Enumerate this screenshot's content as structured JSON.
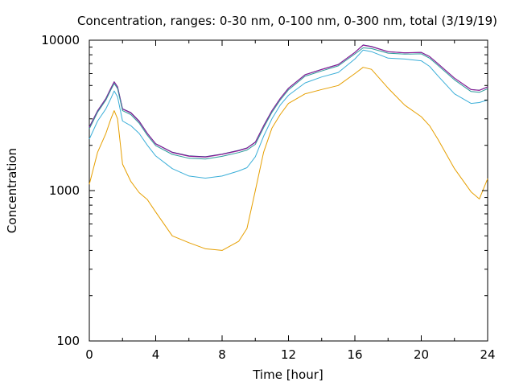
{
  "chart_data": {
    "type": "line",
    "title": "Concentration, ranges: 0-30 nm, 0-100 nm, 0-300 nm, total (3/19/19)",
    "xlabel": "Time [hour]",
    "ylabel": "Concentration",
    "xlim": [
      0,
      24
    ],
    "ylim": [
      100,
      10000
    ],
    "yscale": "log",
    "grid": false,
    "xticks": [
      0,
      4,
      8,
      12,
      16,
      20,
      24
    ],
    "yticks": [
      100,
      1000,
      10000
    ],
    "x": [
      0,
      0.5,
      1,
      1.3,
      1.5,
      1.7,
      2,
      2.5,
      3,
      3.5,
      4,
      5,
      6,
      7,
      8,
      9,
      9.5,
      10,
      10.5,
      11,
      11.5,
      12,
      13,
      14,
      15,
      16,
      16.5,
      17,
      18,
      19,
      20,
      20.5,
      21,
      22,
      23,
      23.5,
      24
    ],
    "series": [
      {
        "color": "#1a2a7a",
        "values": [
          2650,
          3400,
          4100,
          4800,
          5300,
          4900,
          3500,
          3300,
          2900,
          2400,
          2050,
          1800,
          1700,
          1680,
          1750,
          1850,
          1920,
          2100,
          2700,
          3400,
          4100,
          4800,
          5900,
          6400,
          6900,
          8300,
          9300,
          9100,
          8400,
          8250,
          8300,
          7800,
          7000,
          5600,
          4700,
          4650,
          4900
        ]
      },
      {
        "color": "#9a1a9a",
        "values": [
          2630,
          3380,
          4080,
          4780,
          5270,
          4880,
          3480,
          3280,
          2880,
          2390,
          2040,
          1790,
          1690,
          1670,
          1740,
          1840,
          1910,
          2090,
          2690,
          3390,
          4090,
          4780,
          5880,
          6380,
          6880,
          8280,
          9250,
          9050,
          8380,
          8230,
          8280,
          7780,
          6980,
          5590,
          4690,
          4640,
          4880
        ]
      },
      {
        "color": "#2a9a9a",
        "values": [
          2570,
          3320,
          4000,
          4680,
          5150,
          4770,
          3400,
          3200,
          2810,
          2330,
          1990,
          1740,
          1640,
          1620,
          1690,
          1790,
          1860,
          2030,
          2620,
          3310,
          4000,
          4680,
          5760,
          6250,
          6750,
          8100,
          8900,
          8800,
          8200,
          8080,
          8120,
          7600,
          6820,
          5450,
          4560,
          4500,
          4760
        ]
      },
      {
        "color": "#3aaed8",
        "values": [
          2200,
          2900,
          3500,
          4100,
          4600,
          4200,
          2900,
          2700,
          2400,
          2000,
          1700,
          1400,
          1250,
          1210,
          1250,
          1350,
          1420,
          1680,
          2300,
          3000,
          3700,
          4300,
          5200,
          5700,
          6100,
          7500,
          8600,
          8400,
          7600,
          7500,
          7300,
          6700,
          5800,
          4400,
          3800,
          3850,
          4000
        ]
      },
      {
        "color": "#e69f00",
        "values": [
          1100,
          1800,
          2400,
          3000,
          3400,
          3000,
          1500,
          1150,
          970,
          870,
          720,
          500,
          450,
          410,
          400,
          460,
          560,
          1000,
          1800,
          2600,
          3200,
          3800,
          4400,
          4700,
          5000,
          6000,
          6600,
          6400,
          4800,
          3700,
          3100,
          2700,
          2200,
          1400,
          980,
          880,
          1200
        ]
      }
    ]
  }
}
